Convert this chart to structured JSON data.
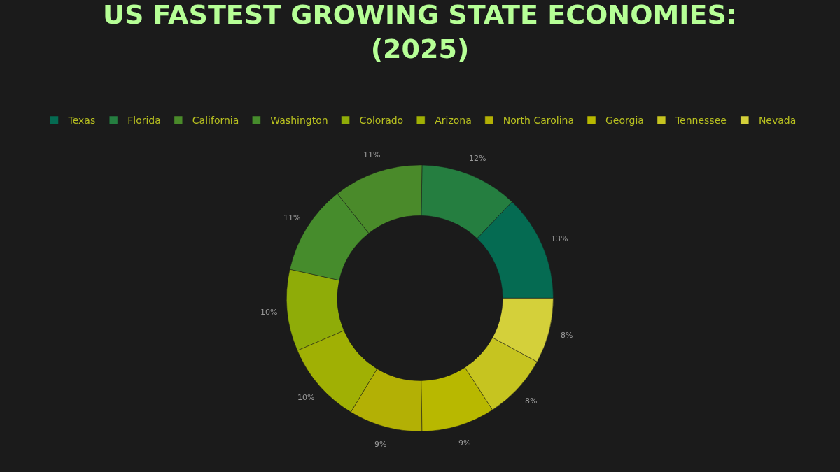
{
  "chart_data": {
    "type": "donut",
    "title": "US FASTEST GROWING STATE ECONOMIES: (2025)",
    "categories": [
      "Texas",
      "Florida",
      "California",
      "Washington",
      "Colorado",
      "Arizona",
      "North Carolina",
      "Georgia",
      "Tennessee",
      "Nevada"
    ],
    "values": [
      13,
      12,
      11,
      11,
      10,
      10,
      9,
      9,
      8,
      8
    ],
    "value_labels": [
      "13%",
      "12%",
      "11%",
      "11%",
      "10%",
      "10%",
      "9%",
      "9%",
      "8%",
      "8%"
    ],
    "colors": [
      "#056b52",
      "#257e40",
      "#4a8a2a",
      "#468c2c",
      "#8fac08",
      "#a0b004",
      "#b3b005",
      "#b8b800",
      "#c6c420",
      "#d4d03a"
    ],
    "legend": "top"
  }
}
